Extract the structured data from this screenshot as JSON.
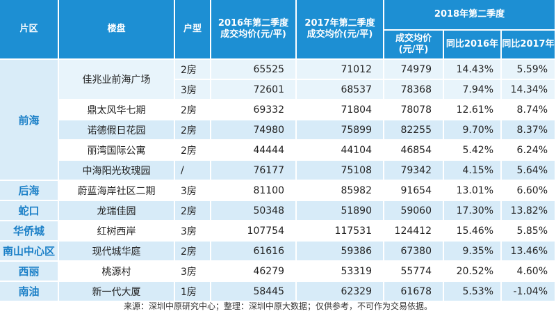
{
  "header": {
    "district": "片区",
    "project": "楼盘",
    "unit_type": "户型",
    "q2_2016": "2016年第二季度\n成交均价(元/平)",
    "q2_2017": "2017年第二季度\n成交均价(元/平)",
    "q2_2018": "2018年第二季度",
    "q2_2018_price": "成交均价\n(元/平)",
    "yoy_2016": "同比2016年",
    "yoy_2017": "同比2017年"
  },
  "rows": [
    {
      "district": "前海",
      "project": "佳兆业前海广场",
      "type": "2房",
      "p2016": "65525",
      "p2017": "71012",
      "p2018": "74979",
      "yoy16": "14.43%",
      "yoy17": "5.59%"
    },
    {
      "district": "",
      "project": "",
      "type": "3房",
      "p2016": "72601",
      "p2017": "68537",
      "p2018": "78368",
      "yoy16": "7.94%",
      "yoy17": "14.34%"
    },
    {
      "district": "",
      "project": "鼎太风华七期",
      "type": "2房",
      "p2016": "69332",
      "p2017": "71804",
      "p2018": "78078",
      "yoy16": "12.61%",
      "yoy17": "8.74%"
    },
    {
      "district": "",
      "project": "诺德假日花园",
      "type": "2房",
      "p2016": "74980",
      "p2017": "75899",
      "p2018": "82255",
      "yoy16": "9.70%",
      "yoy17": "8.37%"
    },
    {
      "district": "",
      "project": "丽湾国际公寓",
      "type": "2房",
      "p2016": "44444",
      "p2017": "44104",
      "p2018": "46854",
      "yoy16": "5.42%",
      "yoy17": "6.24%"
    },
    {
      "district": "",
      "project": "中海阳光玫瑰园",
      "type": "/",
      "p2016": "76177",
      "p2017": "75108",
      "p2018": "79342",
      "yoy16": "4.15%",
      "yoy17": "5.64%"
    },
    {
      "district": "后海",
      "project": "蔚蓝海岸社区二期",
      "type": "3房",
      "p2016": "81100",
      "p2017": "85982",
      "p2018": "91654",
      "yoy16": "13.01%",
      "yoy17": "6.60%"
    },
    {
      "district": "蛇口",
      "project": "龙瑞佳园",
      "type": "2房",
      "p2016": "50348",
      "p2017": "51890",
      "p2018": "59060",
      "yoy16": "17.30%",
      "yoy17": "13.82%"
    },
    {
      "district": "华侨城",
      "project": "红树西岸",
      "type": "3房",
      "p2016": "107754",
      "p2017": "117531",
      "p2018": "124412",
      "yoy16": "15.46%",
      "yoy17": "5.85%"
    },
    {
      "district": "南山中心区",
      "project": "现代城华庭",
      "type": "2房",
      "p2016": "61616",
      "p2017": "59386",
      "p2018": "67380",
      "yoy16": "9.35%",
      "yoy17": "13.46%"
    },
    {
      "district": "西丽",
      "project": "桃源村",
      "type": "3房",
      "p2016": "46279",
      "p2017": "53319",
      "p2018": "55774",
      "yoy16": "20.52%",
      "yoy17": "4.60%"
    },
    {
      "district": "南油",
      "project": "新一代大厦",
      "type": "1房",
      "p2016": "58445",
      "p2017": "62329",
      "p2018": "61678",
      "yoy16": "5.53%",
      "yoy17": "-1.04%"
    }
  ],
  "footnote": "来源：深圳中原研究中心；整理：深圳中原大数据；仅供参考，不可作为交易依据。"
}
